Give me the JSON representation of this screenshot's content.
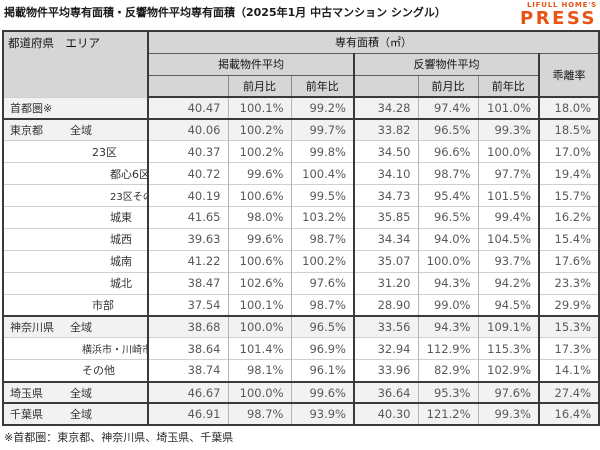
{
  "title": "掲載物件平均専有面積・反響物件平均専有面積（2025年1月 中古マンション シングル）",
  "logo": {
    "line1": "LIFULL HOME'S",
    "line2": "PRESS",
    "color": "#e85414"
  },
  "footnote": "※首都圏：東京都、神奈川県、埼玉県、千葉県",
  "colors": {
    "header_bg": "#d6d6d6",
    "section_row_bg": "#f2f2f2",
    "grid_dark": "#3a3a3a",
    "grid_light": "#b5b5b5",
    "number_text": "#595959",
    "accent_orange": "#e85414"
  },
  "chart_data": {
    "type": "table",
    "title": "掲載物件平均専有面積・反響物件平均専有面積（2025年1月 中古マンション シングル）",
    "header": {
      "corner": "都道府県　エリア",
      "unit_row": "専有面積（㎡）",
      "group1": "掲載物件平均",
      "group2": "反響物件平均",
      "mom": "前月比",
      "yoy": "前年比",
      "deviation": "乖離率"
    },
    "value_names": [
      "listed-avg-area",
      "listed-mom",
      "listed-yoy",
      "inquiry-avg-area",
      "inquiry-mom",
      "inquiry-yoy",
      "deviation-rate"
    ],
    "columns": [
      "都道府県 エリア",
      "掲載物件平均",
      "掲載前月比",
      "掲載前年比",
      "反響物件平均",
      "反響前月比",
      "反響前年比",
      "乖離率"
    ],
    "rows": [
      {
        "pref": "首都圏※",
        "area": "",
        "indent": 0,
        "section": true,
        "sep": false,
        "small": false,
        "values": [
          "40.47",
          "100.1%",
          "99.2%",
          "34.28",
          "97.4%",
          "101.0%",
          "18.0%"
        ]
      },
      {
        "pref": "東京都",
        "area": "全域",
        "indent": 1,
        "section": true,
        "sep": true,
        "small": false,
        "values": [
          "40.06",
          "100.2%",
          "99.7%",
          "33.82",
          "96.5%",
          "99.3%",
          "18.5%"
        ]
      },
      {
        "pref": "",
        "area": "23区",
        "indent": 2,
        "section": false,
        "sep": false,
        "small": false,
        "values": [
          "40.37",
          "100.2%",
          "99.8%",
          "34.50",
          "96.6%",
          "100.0%",
          "17.0%"
        ]
      },
      {
        "pref": "",
        "area": "都心6区",
        "indent": 3,
        "section": false,
        "sep": false,
        "small": false,
        "values": [
          "40.72",
          "99.6%",
          "100.4%",
          "34.10",
          "98.7%",
          "97.7%",
          "19.4%"
        ]
      },
      {
        "pref": "",
        "area": "23区その他",
        "indent": 3,
        "section": false,
        "sep": false,
        "small": true,
        "values": [
          "40.19",
          "100.6%",
          "99.5%",
          "34.73",
          "95.4%",
          "101.5%",
          "15.7%"
        ]
      },
      {
        "pref": "",
        "area": "城東",
        "indent": 3,
        "section": false,
        "sep": false,
        "small": false,
        "values": [
          "41.65",
          "98.0%",
          "103.2%",
          "35.85",
          "96.5%",
          "99.4%",
          "16.2%"
        ]
      },
      {
        "pref": "",
        "area": "城西",
        "indent": 3,
        "section": false,
        "sep": false,
        "small": false,
        "values": [
          "39.63",
          "99.6%",
          "98.7%",
          "34.34",
          "94.0%",
          "104.5%",
          "15.4%"
        ]
      },
      {
        "pref": "",
        "area": "城南",
        "indent": 3,
        "section": false,
        "sep": false,
        "small": false,
        "values": [
          "41.22",
          "100.6%",
          "100.2%",
          "35.07",
          "100.0%",
          "93.7%",
          "17.6%"
        ]
      },
      {
        "pref": "",
        "area": "城北",
        "indent": 3,
        "section": false,
        "sep": false,
        "small": false,
        "values": [
          "38.47",
          "102.6%",
          "97.6%",
          "31.20",
          "94.3%",
          "94.2%",
          "23.3%"
        ]
      },
      {
        "pref": "",
        "area": "市部",
        "indent": 2,
        "section": false,
        "sep": false,
        "small": false,
        "values": [
          "37.54",
          "100.1%",
          "98.7%",
          "28.90",
          "99.0%",
          "94.5%",
          "29.9%"
        ]
      },
      {
        "pref": "神奈川県",
        "area": "全域",
        "indent": 1,
        "section": true,
        "sep": true,
        "small": false,
        "values": [
          "38.68",
          "100.0%",
          "96.5%",
          "33.56",
          "94.3%",
          "109.1%",
          "15.3%"
        ]
      },
      {
        "pref": "",
        "area": "横浜市・川崎市",
        "indent": 4,
        "section": false,
        "sep": false,
        "small": true,
        "values": [
          "38.64",
          "101.4%",
          "96.9%",
          "32.94",
          "112.9%",
          "115.3%",
          "17.3%"
        ]
      },
      {
        "pref": "",
        "area": "その他",
        "indent": 4,
        "section": false,
        "sep": false,
        "small": false,
        "values": [
          "38.74",
          "98.1%",
          "96.1%",
          "33.96",
          "82.9%",
          "102.9%",
          "14.1%"
        ]
      },
      {
        "pref": "埼玉県",
        "area": "全域",
        "indent": 1,
        "section": true,
        "sep": true,
        "small": false,
        "values": [
          "46.67",
          "100.0%",
          "99.6%",
          "36.64",
          "95.3%",
          "97.6%",
          "27.4%"
        ]
      },
      {
        "pref": "千葉県",
        "area": "全域",
        "indent": 1,
        "section": true,
        "sep": true,
        "small": false,
        "values": [
          "46.91",
          "98.7%",
          "93.9%",
          "40.30",
          "121.2%",
          "99.3%",
          "16.4%"
        ]
      }
    ]
  }
}
